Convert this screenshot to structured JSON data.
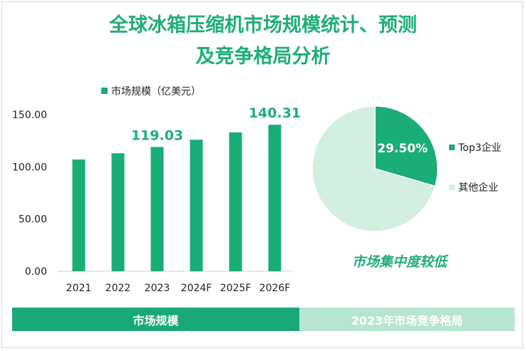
{
  "title": {
    "line1": "全球冰箱压缩机市场规模统计、预测",
    "line2": "及竞争格局分析"
  },
  "colors": {
    "accent": "#1fae77",
    "bar": "#1aad76",
    "pie_major": "#1aad76",
    "pie_minor": "#d2efe0",
    "footer_left": "#1aa878",
    "footer_right": "#b7e5cf"
  },
  "chart_data": [
    {
      "type": "bar",
      "legend": "市场规模（亿美元）",
      "categories": [
        "2021",
        "2022",
        "2023",
        "2024F",
        "2025F",
        "2026F"
      ],
      "series": [
        {
          "name": "市场规模（亿美元）",
          "values": [
            107,
            113,
            119.03,
            126,
            133,
            140.31
          ]
        }
      ],
      "ylim": [
        0,
        150
      ],
      "yticks": [
        "0.00",
        "50.00",
        "100.00",
        "150.00"
      ],
      "labeled": {
        "2023": "119.03",
        "2026F": "140.31"
      }
    },
    {
      "type": "pie",
      "slices": [
        {
          "name": "Top3企业",
          "value": 29.5,
          "label": "29.50%"
        },
        {
          "name": "其他企业",
          "value": 70.5
        }
      ]
    }
  ],
  "note": "市场集中度较低",
  "footer": {
    "left": "市场规模",
    "right": "2023年市场竞争格局"
  }
}
